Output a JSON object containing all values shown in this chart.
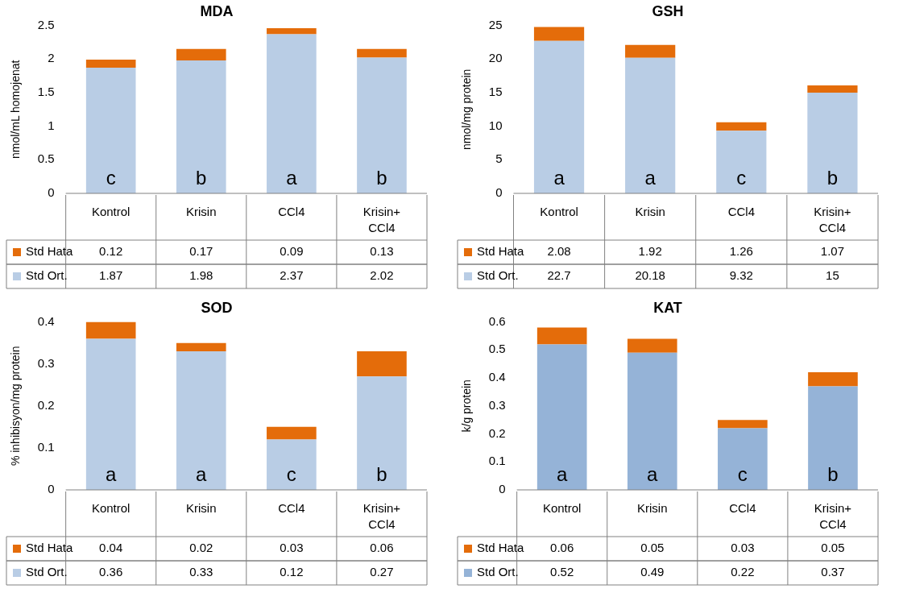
{
  "chart_data": [
    {
      "type": "bar",
      "title": "MDA",
      "ylabel": "nmol/mL homojenat",
      "stacked": true,
      "data_labels": true,
      "legend": "bottom",
      "categories": [
        "Kontrol",
        "Krisin",
        "CCl4",
        "Krisin+ CCl4"
      ],
      "ylim": [
        0,
        2.5
      ],
      "yticks": [
        0,
        0.5,
        1,
        1.5,
        2,
        2.5
      ],
      "series": [
        {
          "name": "Std Ort.",
          "color": "#b9cde5",
          "values": [
            1.87,
            1.98,
            2.37,
            2.02
          ]
        },
        {
          "name": "Std Hata",
          "color": "#e46c0a",
          "values": [
            0.12,
            0.17,
            0.09,
            0.13
          ]
        }
      ],
      "annotations": [
        "c",
        "b",
        "a",
        "b"
      ]
    },
    {
      "type": "bar",
      "title": "GSH",
      "ylabel": "nmol/mg protein",
      "stacked": true,
      "data_labels": true,
      "legend": "bottom",
      "categories": [
        "Kontrol",
        "Krisin",
        "CCl4",
        "Krisin+ CCl4"
      ],
      "ylim": [
        0,
        25
      ],
      "yticks": [
        0,
        5,
        10,
        15,
        20,
        25
      ],
      "series": [
        {
          "name": "Std Ort.",
          "color": "#b9cde5",
          "values": [
            22.7,
            20.18,
            9.32,
            15
          ]
        },
        {
          "name": "Std Hata",
          "color": "#e46c0a",
          "values": [
            2.08,
            1.92,
            1.26,
            1.07
          ]
        }
      ],
      "annotations": [
        "a",
        "a",
        "c",
        "b"
      ]
    },
    {
      "type": "bar",
      "title": "SOD",
      "ylabel": "% inhibisyon/mg protein",
      "stacked": true,
      "data_labels": true,
      "legend": "bottom",
      "categories": [
        "Kontrol",
        "Krisin",
        "CCl4",
        "Krisin+ CCl4"
      ],
      "ylim": [
        0,
        0.4
      ],
      "yticks": [
        0,
        0.1,
        0.2,
        0.3,
        0.4
      ],
      "series": [
        {
          "name": "Std Ort.",
          "color": "#b9cde5",
          "values": [
            0.36,
            0.33,
            0.12,
            0.27
          ]
        },
        {
          "name": "Std Hata",
          "color": "#e46c0a",
          "values": [
            0.04,
            0.02,
            0.03,
            0.06
          ]
        }
      ],
      "annotations": [
        "a",
        "a",
        "c",
        "b"
      ]
    },
    {
      "type": "bar",
      "title": "KAT",
      "ylabel": "k/g protein",
      "stacked": true,
      "data_labels": true,
      "legend": "bottom",
      "categories": [
        "Kontrol",
        "Krisin",
        "CCl4",
        "Krisin+ CCl4"
      ],
      "ylim": [
        0,
        0.6
      ],
      "yticks": [
        0,
        0.1,
        0.2,
        0.3,
        0.4,
        0.5,
        0.6
      ],
      "series": [
        {
          "name": "Std Ort.",
          "color": "#95b3d7",
          "values": [
            0.52,
            0.49,
            0.22,
            0.37
          ]
        },
        {
          "name": "Std Hata",
          "color": "#e46c0a",
          "values": [
            0.06,
            0.05,
            0.03,
            0.05
          ]
        }
      ],
      "annotations": [
        "a",
        "a",
        "c",
        "b"
      ]
    }
  ]
}
